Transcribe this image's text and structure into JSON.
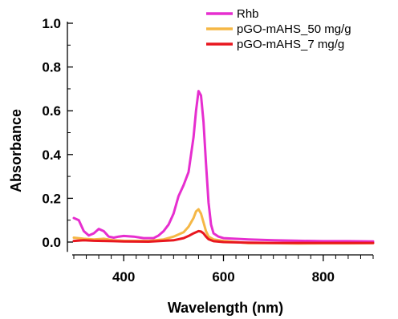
{
  "chart_data": {
    "type": "line",
    "title": "",
    "xlabel": "Wavelength (nm)",
    "ylabel": "Absorbance",
    "xlim": [
      300,
      900
    ],
    "ylim": [
      -0.05,
      1.0
    ],
    "x_ticks": [
      400,
      600,
      800
    ],
    "x_minor_step": 25,
    "y_ticks": [
      "0.0",
      "0.2",
      "0.4",
      "0.6",
      "0.8",
      "1.0"
    ],
    "y_tick_values": [
      0.0,
      0.2,
      0.4,
      0.6,
      0.8,
      1.0
    ],
    "grid": false,
    "legend_position": "top-right",
    "series": [
      {
        "name": "Rhb",
        "color": "#e62ecf",
        "x": [
          300,
          310,
          320,
          330,
          340,
          350,
          360,
          370,
          380,
          390,
          400,
          420,
          440,
          460,
          470,
          480,
          490,
          500,
          510,
          520,
          530,
          540,
          545,
          550,
          555,
          560,
          565,
          570,
          575,
          580,
          590,
          600,
          650,
          700,
          750,
          800,
          850,
          900
        ],
        "y": [
          0.11,
          0.1,
          0.05,
          0.03,
          0.04,
          0.06,
          0.05,
          0.025,
          0.02,
          0.025,
          0.028,
          0.025,
          0.018,
          0.018,
          0.03,
          0.05,
          0.08,
          0.13,
          0.21,
          0.26,
          0.32,
          0.48,
          0.6,
          0.69,
          0.67,
          0.55,
          0.36,
          0.18,
          0.08,
          0.04,
          0.025,
          0.018,
          0.012,
          0.008,
          0.006,
          0.004,
          0.004,
          0.003
        ]
      },
      {
        "name": "pGO-mAHS_50 mg/g",
        "color": "#f5b745",
        "x": [
          300,
          320,
          340,
          360,
          380,
          400,
          450,
          480,
          500,
          520,
          530,
          540,
          545,
          550,
          555,
          560,
          565,
          570,
          580,
          600,
          650,
          700,
          750,
          800,
          850,
          900
        ],
        "y": [
          0.02,
          0.015,
          0.012,
          0.015,
          0.008,
          0.006,
          0.005,
          0.012,
          0.025,
          0.045,
          0.07,
          0.11,
          0.14,
          0.15,
          0.13,
          0.09,
          0.05,
          0.025,
          0.012,
          0.005,
          -0.005,
          -0.005,
          -0.007,
          -0.006,
          -0.006,
          -0.005
        ]
      },
      {
        "name": "pGO-mAHS_7 mg/g",
        "color": "#e8171f",
        "x": [
          300,
          320,
          340,
          360,
          380,
          400,
          450,
          500,
          520,
          530,
          540,
          550,
          555,
          560,
          565,
          570,
          580,
          600,
          650,
          700,
          750,
          800,
          850,
          900
        ],
        "y": [
          0.005,
          0.008,
          0.006,
          0.005,
          0.004,
          0.003,
          0.002,
          0.008,
          0.018,
          0.028,
          0.04,
          0.05,
          0.048,
          0.04,
          0.025,
          0.013,
          0.004,
          0.0,
          -0.003,
          -0.004,
          -0.004,
          -0.004,
          -0.004,
          -0.004
        ]
      }
    ]
  }
}
